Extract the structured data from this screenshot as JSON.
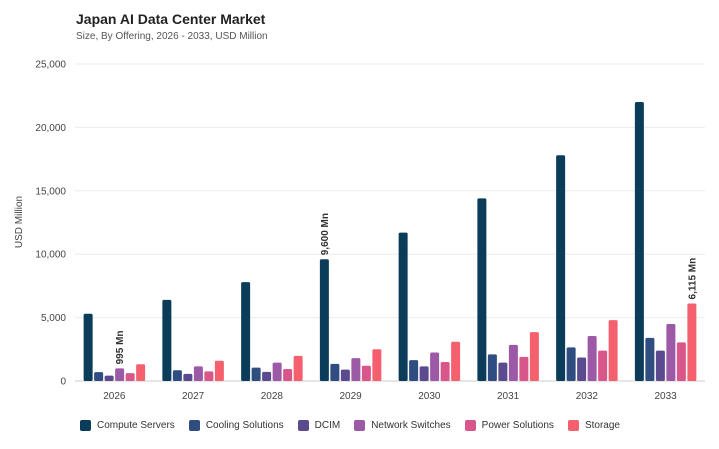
{
  "chart_data": {
    "type": "bar",
    "title": "Japan AI Data Center Market",
    "subtitle": "Size, By Offering, 2026 - 2033, USD Million",
    "xlabel": "",
    "ylabel": "USD Million",
    "ylim": [
      0,
      25000
    ],
    "yticks": [
      0,
      5000,
      10000,
      15000,
      20000,
      25000
    ],
    "ytick_labels": [
      "0",
      "5,000",
      "10,000",
      "15,000",
      "20,000",
      "25,000"
    ],
    "categories": [
      "2026",
      "2027",
      "2028",
      "2029",
      "2030",
      "2031",
      "2032",
      "2033"
    ],
    "series": [
      {
        "name": "Compute Servers",
        "color": "#0b3d5a",
        "values": [
          5300,
          6400,
          7800,
          9600,
          11700,
          14400,
          17800,
          22000
        ]
      },
      {
        "name": "Cooling Solutions",
        "color": "#2f4d80",
        "values": [
          700,
          850,
          1050,
          1350,
          1650,
          2100,
          2650,
          3400
        ]
      },
      {
        "name": "DCIM",
        "color": "#5b4a8e",
        "values": [
          420,
          560,
          720,
          900,
          1150,
          1450,
          1850,
          2400
        ]
      },
      {
        "name": "Network Switches",
        "color": "#9b59a6",
        "values": [
          995,
          1150,
          1450,
          1800,
          2250,
          2850,
          3550,
          4500
        ]
      },
      {
        "name": "Power Solutions",
        "color": "#d9568a",
        "values": [
          620,
          760,
          950,
          1200,
          1500,
          1900,
          2400,
          3050
        ]
      },
      {
        "name": "Storage",
        "color": "#f4606e",
        "values": [
          1320,
          1600,
          1980,
          2500,
          3100,
          3850,
          4800,
          6115
        ]
      }
    ],
    "annotations": [
      {
        "text": "995 Mn",
        "category": "2026",
        "series": "Network Switches"
      },
      {
        "text": "9,600 Mn",
        "category": "2029",
        "series": "Compute Servers"
      },
      {
        "text": "6,115 Mn",
        "category": "2033",
        "series": "Storage"
      }
    ],
    "grid": true,
    "legend_position": "bottom"
  }
}
